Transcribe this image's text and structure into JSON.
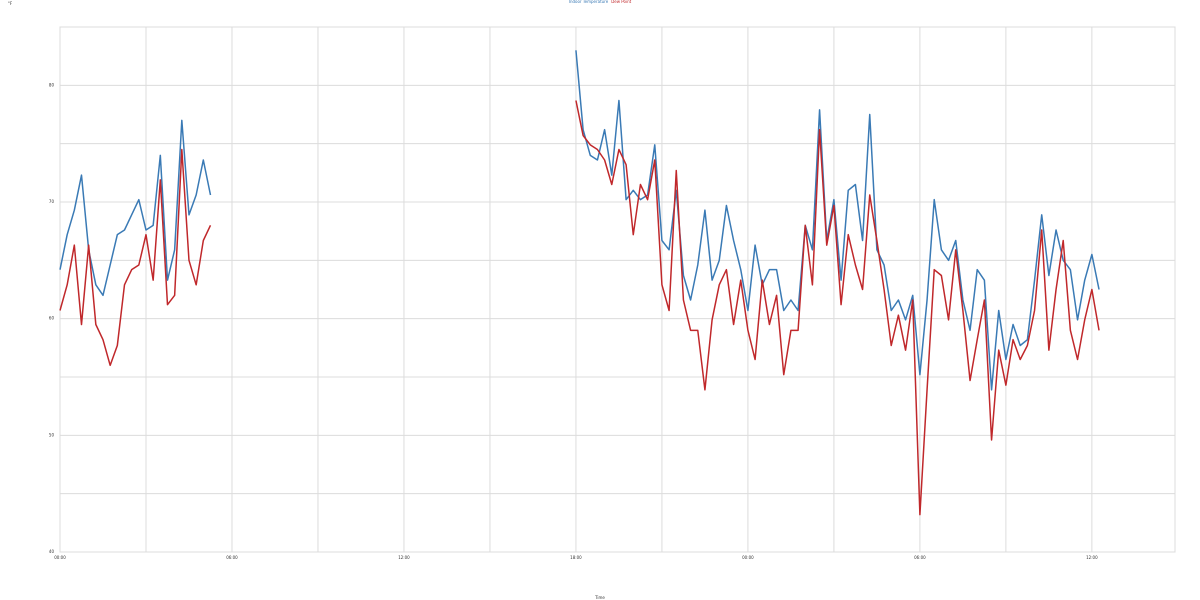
{
  "chart_data": {
    "type": "line",
    "xlabel": "Time",
    "ylabel": "°F",
    "x": [
      0,
      0.25,
      0.5,
      0.75,
      1,
      1.25,
      1.5,
      1.75,
      2,
      2.25,
      2.5,
      2.75,
      3,
      3.25,
      3.5,
      3.75,
      4,
      4.25,
      4.5,
      4.75,
      5,
      5.25,
      12,
      18,
      18.25,
      18.5,
      18.75,
      19,
      19.25,
      19.5,
      19.75,
      20,
      20.25,
      20.5,
      20.75,
      21,
      21.25,
      21.5,
      21.75,
      22,
      22.25,
      22.5,
      22.75,
      23,
      23.25,
      23.5,
      23.75,
      24,
      24.25,
      24.5,
      24.75,
      25,
      25.25,
      25.5,
      25.75,
      26,
      26.25,
      26.5,
      26.75,
      27,
      27.25,
      27.5,
      27.75,
      28,
      28.25,
      28.5,
      28.75,
      29,
      29.25,
      29.5,
      29.75,
      30,
      30.25,
      30.5,
      30.75,
      31,
      31.25,
      31.5,
      31.75,
      32,
      32.25,
      32.5,
      32.75,
      33,
      33.25,
      33.5,
      33.75,
      34,
      34.25,
      34.5,
      34.75,
      35,
      35.25,
      35.5,
      35.75,
      36,
      36.25
    ],
    "series": [
      {
        "name": "Indoor Temperature",
        "color": "#3a7ab5",
        "values": [
          64.2,
          67.2,
          69.3,
          72.3,
          65.9,
          62.9,
          62.0,
          64.6,
          67.2,
          67.6,
          68.9,
          70.2,
          67.6,
          68.0,
          74.0,
          63.3,
          65.9,
          77.0,
          68.9,
          70.6,
          73.6,
          70.6,
          null,
          83.0,
          76.2,
          74.0,
          73.6,
          76.2,
          72.3,
          78.7,
          70.2,
          71.0,
          70.2,
          70.6,
          74.9,
          66.7,
          65.9,
          71.0,
          63.7,
          61.6,
          64.6,
          69.3,
          63.3,
          65.0,
          69.7,
          66.7,
          64.2,
          60.7,
          66.3,
          62.9,
          64.2,
          64.2,
          60.7,
          61.6,
          60.7,
          68.0,
          65.9,
          77.9,
          66.7,
          70.2,
          63.3,
          71.0,
          71.5,
          66.7,
          77.5,
          65.9,
          64.6,
          60.7,
          61.6,
          59.9,
          62.0,
          55.2,
          61.6,
          70.2,
          65.9,
          65.0,
          66.7,
          61.6,
          59.0,
          64.2,
          63.3,
          53.9,
          60.7,
          56.5,
          59.5,
          57.7,
          58.2,
          63.3,
          68.9,
          63.7,
          67.6,
          65.0,
          64.2,
          59.9,
          63.3,
          65.5,
          62.5
        ]
      },
      {
        "name": "Dew Point",
        "color": "#c0282b",
        "values": [
          60.7,
          62.9,
          66.3,
          59.5,
          66.3,
          59.5,
          58.2,
          56.0,
          57.7,
          62.9,
          64.2,
          64.6,
          67.2,
          63.3,
          71.9,
          61.2,
          62.0,
          74.5,
          65.0,
          62.9,
          66.7,
          68.0,
          null,
          78.7,
          75.7,
          74.9,
          74.5,
          73.6,
          71.5,
          74.5,
          73.2,
          67.2,
          71.5,
          70.2,
          73.6,
          62.9,
          60.7,
          72.7,
          61.6,
          59.0,
          59.0,
          53.9,
          59.9,
          62.9,
          64.2,
          59.5,
          63.3,
          59.0,
          56.5,
          63.3,
          59.5,
          62.0,
          55.2,
          59.0,
          59.0,
          68.0,
          62.9,
          76.2,
          66.3,
          69.7,
          61.2,
          67.2,
          64.6,
          62.5,
          70.6,
          66.7,
          62.5,
          57.7,
          60.3,
          57.3,
          61.6,
          43.2,
          53.9,
          64.2,
          63.7,
          59.9,
          65.9,
          60.7,
          54.7,
          58.2,
          61.6,
          49.6,
          57.3,
          54.3,
          58.2,
          56.5,
          57.7,
          60.7,
          67.6,
          57.3,
          62.5,
          66.7,
          59.0,
          56.5,
          59.9,
          62.5,
          59.0
        ]
      }
    ],
    "xlim": [
      0,
      38.9
    ],
    "xticks": [
      {
        "value": 0,
        "label": "00:00"
      },
      {
        "value": 6,
        "label": "06:00"
      },
      {
        "value": 12,
        "label": "12:00"
      },
      {
        "value": 18,
        "label": "18:00"
      },
      {
        "value": 24,
        "label": "00:00"
      },
      {
        "value": 30,
        "label": "06:00"
      },
      {
        "value": 36,
        "label": "12:00"
      }
    ],
    "xminor": [
      3,
      9,
      15,
      21,
      27,
      33
    ],
    "ylim": [
      40,
      85
    ],
    "yticks": [
      40,
      50,
      60,
      70,
      80
    ],
    "yminor": [
      45,
      55,
      65,
      75
    ],
    "grid": true
  }
}
